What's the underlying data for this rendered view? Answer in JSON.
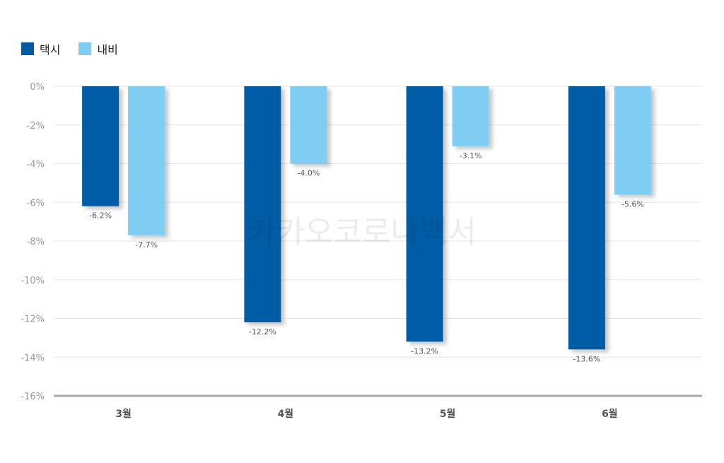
{
  "colors": {
    "series_dark": "#005ba4",
    "series_light": "#7fcdf2",
    "grid": "#e6e6e6",
    "axis": "#bbbbbb"
  },
  "watermark": "카카오코로나백서",
  "chart_data": {
    "type": "bar",
    "categories": [
      "3월",
      "4월",
      "5월",
      "6월"
    ],
    "series": [
      {
        "name": "택시",
        "color": "#005ba4",
        "values": [
          -6.2,
          -12.2,
          -13.2,
          -13.6
        ],
        "labels": [
          "-6.2%",
          "-12.2%",
          "-13.2%",
          "-13.6%"
        ]
      },
      {
        "name": "내비",
        "color": "#7fcdf2",
        "values": [
          -7.7,
          -4.0,
          -3.1,
          -5.6
        ],
        "labels": [
          "-7.7%",
          "-4.0%",
          "-3.1%",
          "-5.6%"
        ]
      }
    ],
    "ylim": [
      -16,
      0
    ],
    "yticks": [
      "0%",
      "-2%",
      "-4%",
      "-6%",
      "-8%",
      "-10%",
      "-12%",
      "-14%",
      "-16%"
    ],
    "grid": true,
    "legend": "top-left"
  }
}
